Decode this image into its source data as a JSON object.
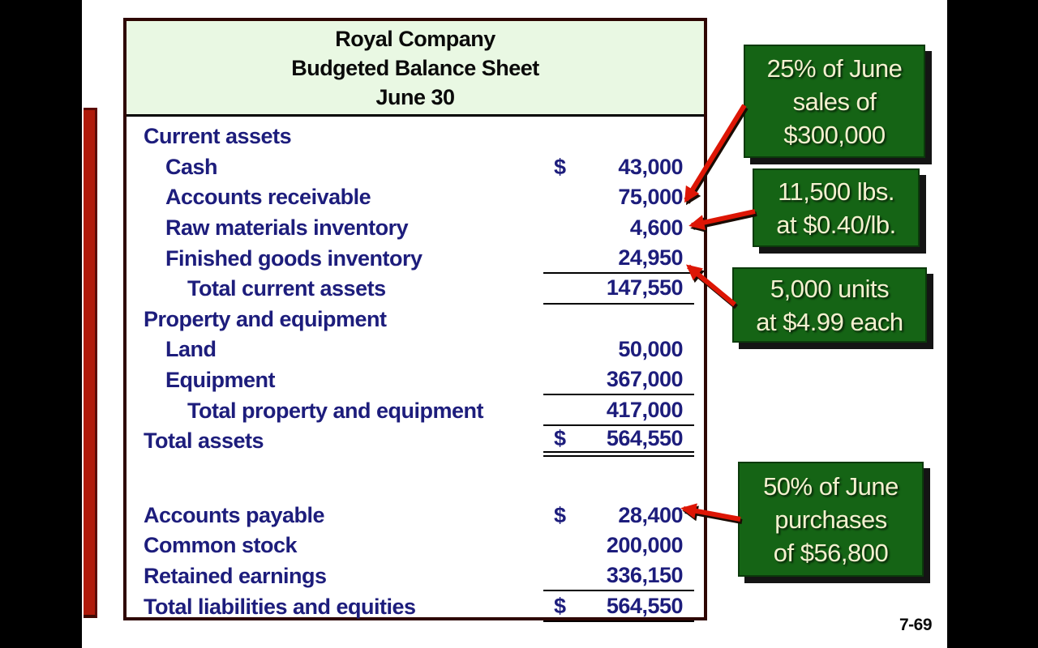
{
  "page_number": "7-69",
  "colors": {
    "background": "#000000",
    "slide": "#ffffff",
    "table_text": "#1d1d7c",
    "table_border": "#2e0703",
    "header_bg": "#e9f8e3",
    "callout_bg": "#156415",
    "callout_text": "#f3f0cf",
    "arrow": "#dd1605",
    "accent_bar": "#b01b0b"
  },
  "balance_sheet": {
    "title_lines": [
      "Royal Company",
      "Budgeted Balance Sheet",
      "June 30"
    ],
    "rows": [
      {
        "label": "Current assets",
        "indent": 0,
        "dollar": "",
        "value": "",
        "underline": "none",
        "blank": false
      },
      {
        "label": "Cash",
        "indent": 1,
        "dollar": "$",
        "value": "43,000",
        "underline": "none",
        "blank": false
      },
      {
        "label": "Accounts receivable",
        "indent": 1,
        "dollar": "",
        "value": "75,000",
        "underline": "none",
        "blank": false
      },
      {
        "label": "Raw materials inventory",
        "indent": 1,
        "dollar": "",
        "value": "4,600",
        "underline": "none",
        "blank": false
      },
      {
        "label": "Finished goods inventory",
        "indent": 1,
        "dollar": "",
        "value": "24,950",
        "underline": "single",
        "blank": false
      },
      {
        "label": "Total current assets",
        "indent": 2,
        "dollar": "",
        "value": "147,550",
        "underline": "single",
        "blank": false
      },
      {
        "label": "Property and equipment",
        "indent": 0,
        "dollar": "",
        "value": "",
        "underline": "none",
        "blank": false
      },
      {
        "label": "Land",
        "indent": 1,
        "dollar": "",
        "value": "50,000",
        "underline": "none",
        "blank": false
      },
      {
        "label": "Equipment",
        "indent": 1,
        "dollar": "",
        "value": "367,000",
        "underline": "single",
        "blank": false
      },
      {
        "label": "Total property and equipment",
        "indent": 2,
        "dollar": "",
        "value": "417,000",
        "underline": "single",
        "blank": false
      },
      {
        "label": "Total assets",
        "indent": 0,
        "dollar": "$",
        "value": "564,550",
        "underline": "double",
        "blank": false
      },
      {
        "label": "",
        "indent": 0,
        "dollar": "",
        "value": "",
        "underline": "none",
        "blank": true
      },
      {
        "label": "Accounts payable",
        "indent": 0,
        "dollar": "$",
        "value": "28,400",
        "underline": "none",
        "blank": false
      },
      {
        "label": "Common stock",
        "indent": 0,
        "dollar": "",
        "value": "200,000",
        "underline": "none",
        "blank": false
      },
      {
        "label": "Retained earnings",
        "indent": 0,
        "dollar": "",
        "value": "336,150",
        "underline": "single",
        "blank": false
      },
      {
        "label": "Total liabilities and equities",
        "indent": 0,
        "dollar": "$",
        "value": "564,550",
        "underline": "single",
        "blank": false
      }
    ]
  },
  "callouts": [
    {
      "id": "accounts-receivable-note",
      "lines": [
        "25% of June",
        "sales of",
        "$300,000"
      ]
    },
    {
      "id": "raw-materials-note",
      "lines": [
        "11,500 lbs.",
        "at $0.40/lb."
      ]
    },
    {
      "id": "finished-goods-note",
      "lines": [
        "5,000 units",
        "at $4.99 each"
      ]
    },
    {
      "id": "accounts-payable-note",
      "lines": [
        "50% of June",
        "purchases",
        "of $56,800"
      ]
    }
  ]
}
